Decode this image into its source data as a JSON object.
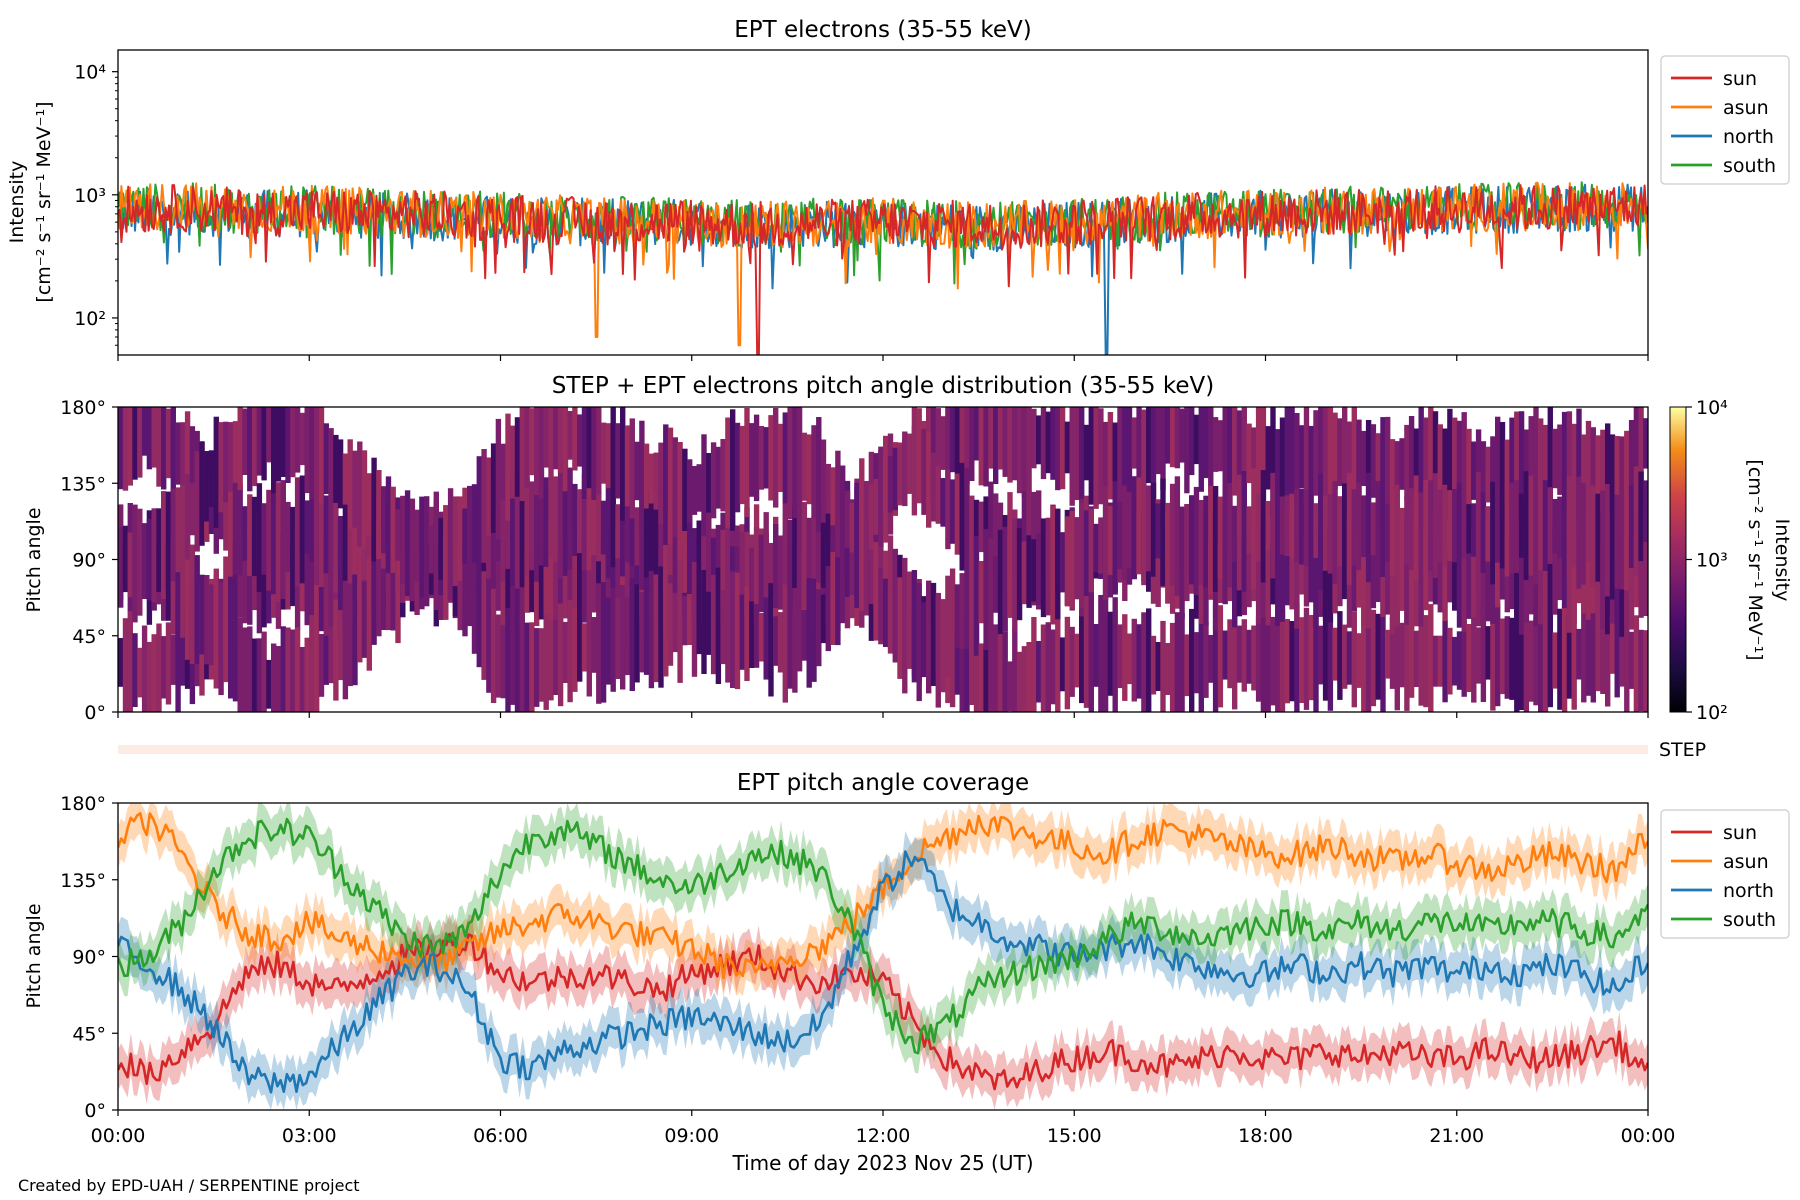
{
  "figure": {
    "credit": "Created by EPD-UAH / SERPENTINE project",
    "xlabel": "Time of day 2023 Nov 25 (UT)",
    "time_ticks": [
      "00:00",
      "03:00",
      "06:00",
      "09:00",
      "12:00",
      "15:00",
      "18:00",
      "21:00",
      "00:00"
    ]
  },
  "colors": {
    "sun": "#d62728",
    "asun": "#ff7f0e",
    "north": "#1f77b4",
    "south": "#2ca02c"
  },
  "chart_data": [
    {
      "id": "intensity",
      "type": "line",
      "title": "EPT electrons (35-55 keV)",
      "ylabel": [
        "Intensity",
        "[cm⁻² s⁻¹ sr⁻¹ MeV⁻¹]"
      ],
      "yscale": "log",
      "ylim": [
        50,
        15000
      ],
      "xlim_hours": [
        0,
        24
      ],
      "yticks": [
        {
          "value": 100,
          "label": "10²"
        },
        {
          "value": 1000,
          "label": "10³"
        },
        {
          "value": 10000,
          "label": "10⁴"
        }
      ],
      "legend": {
        "placement": "right",
        "entries": [
          "sun",
          "asun",
          "north",
          "south"
        ]
      },
      "series": [
        {
          "name": "sun",
          "color": "#d62728",
          "x": [
            0,
            1,
            2,
            3,
            4,
            5,
            6,
            7,
            8,
            9,
            10,
            11,
            12,
            13,
            14,
            15,
            16,
            17,
            18,
            19,
            20,
            21,
            22,
            23,
            24
          ],
          "y": [
            750,
            780,
            720,
            730,
            700,
            690,
            650,
            620,
            610,
            600,
            560,
            590,
            600,
            580,
            560,
            600,
            640,
            680,
            700,
            720,
            740,
            760,
            780,
            790,
            800
          ]
        },
        {
          "name": "asun",
          "color": "#ff7f0e",
          "x": [
            0,
            1,
            2,
            3,
            4,
            5,
            6,
            7,
            8,
            9,
            10,
            11,
            12,
            13,
            14,
            15,
            16,
            17,
            18,
            19,
            20,
            21,
            22,
            23,
            24
          ],
          "y": [
            800,
            820,
            760,
            760,
            730,
            700,
            660,
            630,
            600,
            600,
            560,
            590,
            600,
            580,
            560,
            600,
            650,
            690,
            720,
            740,
            760,
            780,
            800,
            810,
            830
          ]
        },
        {
          "name": "north",
          "color": "#1f77b4",
          "x": [
            0,
            1,
            2,
            3,
            4,
            5,
            6,
            7,
            8,
            9,
            10,
            11,
            12,
            13,
            14,
            15,
            16,
            17,
            18,
            19,
            20,
            21,
            22,
            23,
            24
          ],
          "y": [
            720,
            740,
            700,
            700,
            670,
            660,
            630,
            600,
            590,
            600,
            570,
            580,
            580,
            560,
            540,
            570,
            620,
            660,
            690,
            710,
            730,
            750,
            770,
            780,
            790
          ]
        },
        {
          "name": "south",
          "color": "#2ca02c",
          "x": [
            0,
            1,
            2,
            3,
            4,
            5,
            6,
            7,
            8,
            9,
            10,
            11,
            12,
            13,
            14,
            15,
            16,
            17,
            18,
            19,
            20,
            21,
            22,
            23,
            24
          ],
          "y": [
            780,
            800,
            760,
            760,
            720,
            700,
            680,
            640,
            620,
            610,
            580,
            600,
            600,
            580,
            560,
            600,
            650,
            690,
            720,
            740,
            760,
            780,
            800,
            810,
            820
          ]
        }
      ],
      "dips": [
        {
          "series": "asun",
          "x": 7.5,
          "y": 70
        },
        {
          "series": "asun",
          "x": 9.75,
          "y": 60
        },
        {
          "series": "sun",
          "x": 10.05,
          "y": 50
        },
        {
          "series": "north",
          "x": 15.5,
          "y": 50
        }
      ]
    },
    {
      "id": "pad",
      "type": "heatmap",
      "title": "STEP + EPT electrons pitch angle distribution (35-55 keV)",
      "ylabel": "Pitch angle",
      "ylim": [
        0,
        180
      ],
      "yticks": [
        "0°",
        "45°",
        "90°",
        "135°",
        "180°"
      ],
      "xlim_hours": [
        0,
        24
      ],
      "colorbar": {
        "label": "Intensity",
        "units": "[cm⁻² s⁻¹ sr⁻¹ MeV⁻¹]",
        "scale": "log",
        "range": [
          100,
          10000
        ],
        "ticks": [
          "10²",
          "10³",
          "10⁴"
        ],
        "colormap": "inferno"
      },
      "typical_intensity": 600
    },
    {
      "id": "step-strip",
      "type": "heatmap",
      "label": "STEP"
    },
    {
      "id": "coverage",
      "type": "line",
      "title": "EPT pitch angle coverage",
      "ylabel": "Pitch angle",
      "ylim": [
        0,
        180
      ],
      "yticks": [
        "0°",
        "45°",
        "90°",
        "135°",
        "180°"
      ],
      "xlim_hours": [
        0,
        24
      ],
      "legend": {
        "placement": "right",
        "entries": [
          "sun",
          "asun",
          "north",
          "south"
        ]
      },
      "series": [
        {
          "name": "sun",
          "color": "#d62728",
          "x": [
            0,
            0.5,
            1,
            1.5,
            2,
            2.5,
            3,
            3.5,
            4,
            4.5,
            5,
            5.5,
            6,
            6.5,
            7,
            7.5,
            8,
            8.5,
            9,
            9.5,
            10,
            10.5,
            11,
            11.5,
            12,
            12.5,
            13,
            13.5,
            14,
            14.5,
            15,
            15.5,
            16,
            16.5,
            17,
            17.5,
            18,
            18.5,
            19,
            19.5,
            20,
            20.5,
            21,
            21.5,
            22,
            22.5,
            23,
            23.5,
            24
          ],
          "y": [
            30,
            20,
            35,
            50,
            80,
            85,
            75,
            70,
            80,
            90,
            95,
            100,
            80,
            75,
            78,
            80,
            75,
            70,
            80,
            85,
            90,
            80,
            75,
            80,
            75,
            50,
            30,
            20,
            15,
            25,
            30,
            35,
            30,
            25,
            30,
            35,
            30,
            30,
            35,
            30,
            35,
            30,
            30,
            35,
            30,
            30,
            35,
            40,
            20
          ]
        },
        {
          "name": "asun",
          "color": "#ff7f0e",
          "x": [
            0,
            0.5,
            1,
            1.5,
            2,
            2.5,
            3,
            3.5,
            4,
            4.5,
            5,
            5.5,
            6,
            6.5,
            7,
            7.5,
            8,
            8.5,
            9,
            9.5,
            10,
            10.5,
            11,
            11.5,
            12,
            12.5,
            13,
            13.5,
            14,
            14.5,
            15,
            15.5,
            16,
            16.5,
            17,
            17.5,
            18,
            18.5,
            19,
            19.5,
            20,
            20.5,
            21,
            21.5,
            22,
            22.5,
            23,
            23.5,
            24
          ],
          "y": [
            160,
            170,
            150,
            120,
            105,
            100,
            110,
            100,
            95,
            90,
            85,
            95,
            105,
            110,
            115,
            110,
            105,
            100,
            95,
            85,
            80,
            90,
            95,
            110,
            130,
            150,
            160,
            170,
            165,
            160,
            155,
            150,
            160,
            165,
            160,
            155,
            150,
            150,
            155,
            150,
            145,
            150,
            145,
            140,
            145,
            150,
            145,
            140,
            160
          ]
        },
        {
          "name": "north",
          "color": "#1f77b4",
          "x": [
            0,
            0.5,
            1,
            1.5,
            2,
            2.5,
            3,
            3.5,
            4,
            4.5,
            5,
            5.5,
            6,
            6.5,
            7,
            7.5,
            8,
            8.5,
            9,
            9.5,
            10,
            10.5,
            11,
            11.5,
            12,
            12.5,
            13,
            13.5,
            14,
            14.5,
            15,
            15.5,
            16,
            16.5,
            17,
            17.5,
            18,
            18.5,
            19,
            19.5,
            20,
            20.5,
            21,
            21.5,
            22,
            22.5,
            23,
            23.5,
            24
          ],
          "y": [
            95,
            85,
            70,
            50,
            20,
            15,
            20,
            40,
            60,
            80,
            85,
            70,
            30,
            25,
            35,
            40,
            45,
            50,
            55,
            50,
            45,
            40,
            50,
            90,
            130,
            150,
            120,
            110,
            100,
            95,
            90,
            95,
            100,
            90,
            85,
            80,
            80,
            85,
            80,
            85,
            80,
            85,
            80,
            85,
            80,
            85,
            80,
            70,
            90
          ]
        },
        {
          "name": "south",
          "color": "#2ca02c",
          "x": [
            0,
            0.5,
            1,
            1.5,
            2,
            2.5,
            3,
            3.5,
            4,
            4.5,
            5,
            5.5,
            6,
            6.5,
            7,
            7.5,
            8,
            8.5,
            9,
            9.5,
            10,
            10.5,
            11,
            11.5,
            12,
            12.5,
            13,
            13.5,
            14,
            14.5,
            15,
            15.5,
            16,
            16.5,
            17,
            17.5,
            18,
            18.5,
            19,
            19.5,
            20,
            20.5,
            21,
            21.5,
            22,
            22.5,
            23,
            23.5,
            24
          ],
          "y": [
            85,
            90,
            110,
            140,
            160,
            165,
            160,
            140,
            120,
            100,
            95,
            105,
            140,
            160,
            165,
            155,
            145,
            135,
            130,
            140,
            150,
            150,
            140,
            110,
            60,
            40,
            50,
            70,
            80,
            85,
            90,
            100,
            110,
            105,
            100,
            105,
            110,
            110,
            105,
            110,
            105,
            110,
            110,
            105,
            110,
            110,
            105,
            100,
            120
          ]
        }
      ],
      "band_halfwidth": 12
    }
  ]
}
